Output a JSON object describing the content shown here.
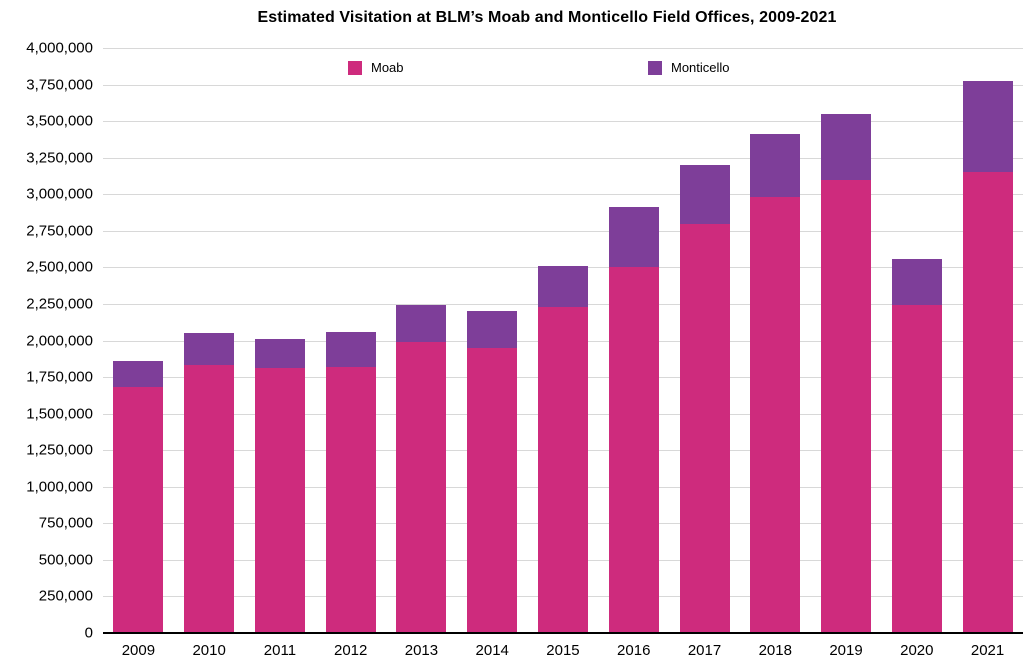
{
  "title": "Estimated Visitation at BLM’s Moab and Monticello Field Offices, 2009-2021",
  "colors": {
    "moab": "#CE2B7D",
    "monticello": "#7E3E99",
    "gridline": "#D8D8D8",
    "axis": "#000000"
  },
  "chart_data": {
    "type": "bar",
    "stacked": true,
    "title": "Estimated Visitation at BLM’s Moab and Monticello Field Offices, 2009-2021",
    "xlabel": "",
    "ylabel": "",
    "categories": [
      "2009",
      "2010",
      "2011",
      "2012",
      "2013",
      "2014",
      "2015",
      "2016",
      "2017",
      "2018",
      "2019",
      "2020",
      "2021"
    ],
    "series": [
      {
        "name": "Moab",
        "color": "#CE2B7D",
        "values": [
          1680000,
          1830000,
          1810000,
          1820000,
          1990000,
          1950000,
          2230000,
          2500000,
          2800000,
          2980000,
          3100000,
          2240000,
          3150000
        ]
      },
      {
        "name": "Monticello",
        "color": "#7E3E99",
        "values": [
          180000,
          225000,
          200000,
          240000,
          250000,
          250000,
          280000,
          415000,
          400000,
          430000,
          450000,
          320000,
          625000
        ]
      }
    ],
    "totals": [
      1860000,
      2055000,
      2010000,
      2060000,
      2240000,
      2200000,
      2510000,
      2915000,
      3200000,
      3410000,
      3550000,
      2560000,
      3775000
    ],
    "ylim": [
      0,
      4000000
    ],
    "ytick_step": 250000,
    "ytick_labels": [
      "0",
      "250,000",
      "500,000",
      "750,000",
      "1,000,000",
      "1,250,000",
      "1,500,000",
      "1,750,000",
      "2,000,000",
      "2,250,000",
      "2,500,000",
      "2,750,000",
      "3,000,000",
      "3,250,000",
      "3,500,000",
      "3,750,000",
      "4,000,000"
    ],
    "grid": true,
    "legend_position": "top"
  }
}
